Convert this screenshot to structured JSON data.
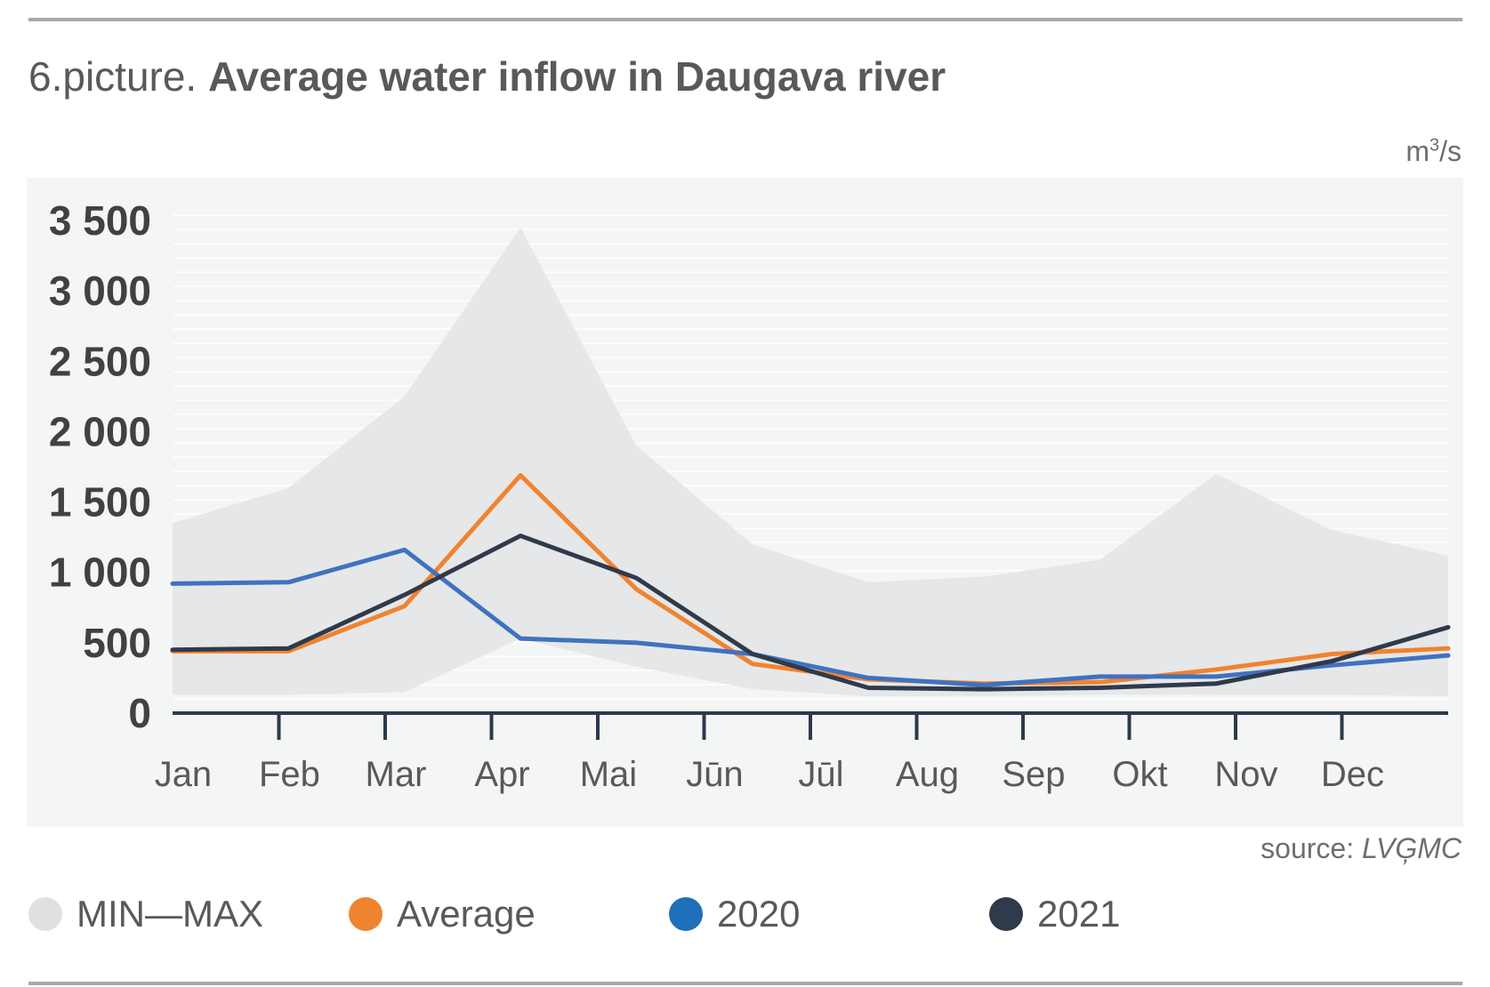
{
  "title": {
    "prefix": "6.picture.",
    "main": "Average water inflow in Daugava river"
  },
  "unit": {
    "base": "m",
    "exp": "3",
    "suffix": "/s"
  },
  "source": {
    "label": "source:",
    "value": "LVĢMC"
  },
  "colors": {
    "band": "#e6e7e8",
    "plot_bg": "#f4f5f5",
    "average": "#f0832f",
    "y2020": "#3f72c0",
    "y2021": "#2f3a4a",
    "axis": "#2b3a4d",
    "legend_band": "#e0e0e0",
    "legend_2020": "#1f6fba"
  },
  "legend": [
    {
      "label": "MIN—MAX",
      "color": "#e0e0e0"
    },
    {
      "label": "Average",
      "color": "#f0832f"
    },
    {
      "label": "2020",
      "color": "#1f6fba"
    },
    {
      "label": "2021",
      "color": "#2f3a4a"
    }
  ],
  "chart_data": {
    "type": "line",
    "title": "Average water inflow in Daugava river",
    "ylabel": "m³/s",
    "xlabel": "",
    "categories": [
      "Jan",
      "Feb",
      "Mar",
      "Apr",
      "Mai",
      "Jūn",
      "Jūl",
      "Aug",
      "Sep",
      "Okt",
      "Nov",
      "Dec"
    ],
    "ylim": [
      0,
      3500
    ],
    "y_ticks": [
      0,
      500,
      1000,
      1500,
      2000,
      2500,
      3000,
      3500
    ],
    "y_tick_labels": [
      "0",
      "500",
      "1 000",
      "1 500",
      "2 000",
      "2 500",
      "3 000",
      "3 500"
    ],
    "band": {
      "name": "MIN—MAX",
      "min": [
        130,
        130,
        150,
        530,
        330,
        170,
        120,
        120,
        130,
        130,
        130,
        120
      ],
      "max": [
        1350,
        1600,
        2250,
        3450,
        1900,
        1200,
        930,
        970,
        1090,
        1700,
        1300,
        1120
      ]
    },
    "series": [
      {
        "name": "Average",
        "values": [
          440,
          440,
          760,
          1690,
          880,
          350,
          240,
          210,
          220,
          310,
          420,
          460
        ]
      },
      {
        "name": "2020",
        "values": [
          920,
          930,
          1160,
          530,
          500,
          420,
          250,
          200,
          260,
          260,
          340,
          410
        ]
      },
      {
        "name": "2021",
        "values": [
          450,
          460,
          840,
          1260,
          960,
          420,
          180,
          170,
          180,
          210,
          370,
          610
        ]
      }
    ],
    "grid": true,
    "legend_position": "bottom"
  }
}
